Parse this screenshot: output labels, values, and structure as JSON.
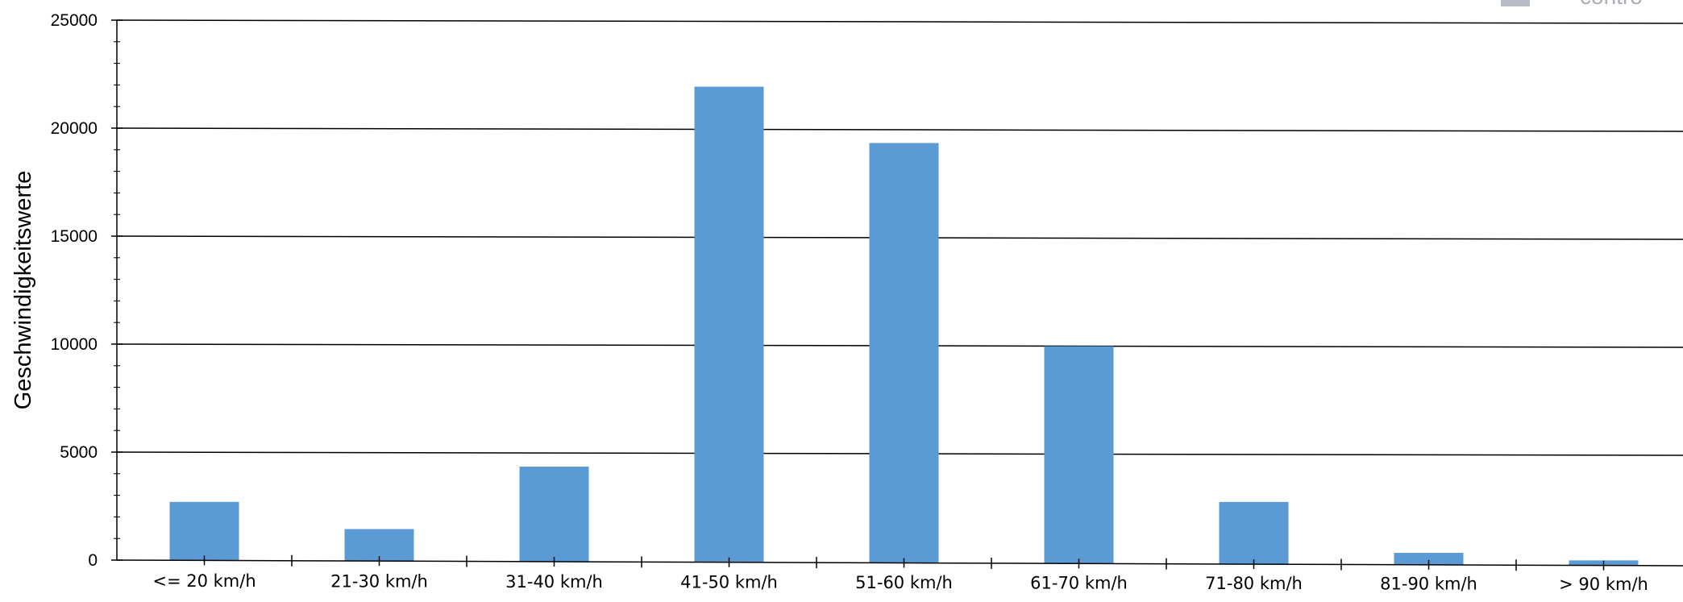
{
  "chart_data": {
    "type": "bar",
    "title": "",
    "xlabel": "",
    "ylabel": "Geschwindigkeitswerte",
    "ylim": [
      0,
      25000
    ],
    "yticks": [
      0,
      5000,
      10000,
      15000,
      20000,
      25000
    ],
    "ytick_labels": [
      "0",
      "5000",
      "10000",
      "15000",
      "20000",
      "25000"
    ],
    "grid": true,
    "legend": "none",
    "categories": [
      "<= 20 km/h",
      "21-30 km/h",
      "31-40 km/h",
      "41-50 km/h",
      "51-60 km/h",
      "61-70 km/h",
      "71-80 km/h",
      "81-90 km/h",
      "> 90 km/h"
    ],
    "values": [
      2700,
      1450,
      4350,
      21950,
      19350,
      9950,
      2750,
      400,
      60
    ],
    "bar_color": "#5b9bd5",
    "watermark_text": "contro"
  }
}
